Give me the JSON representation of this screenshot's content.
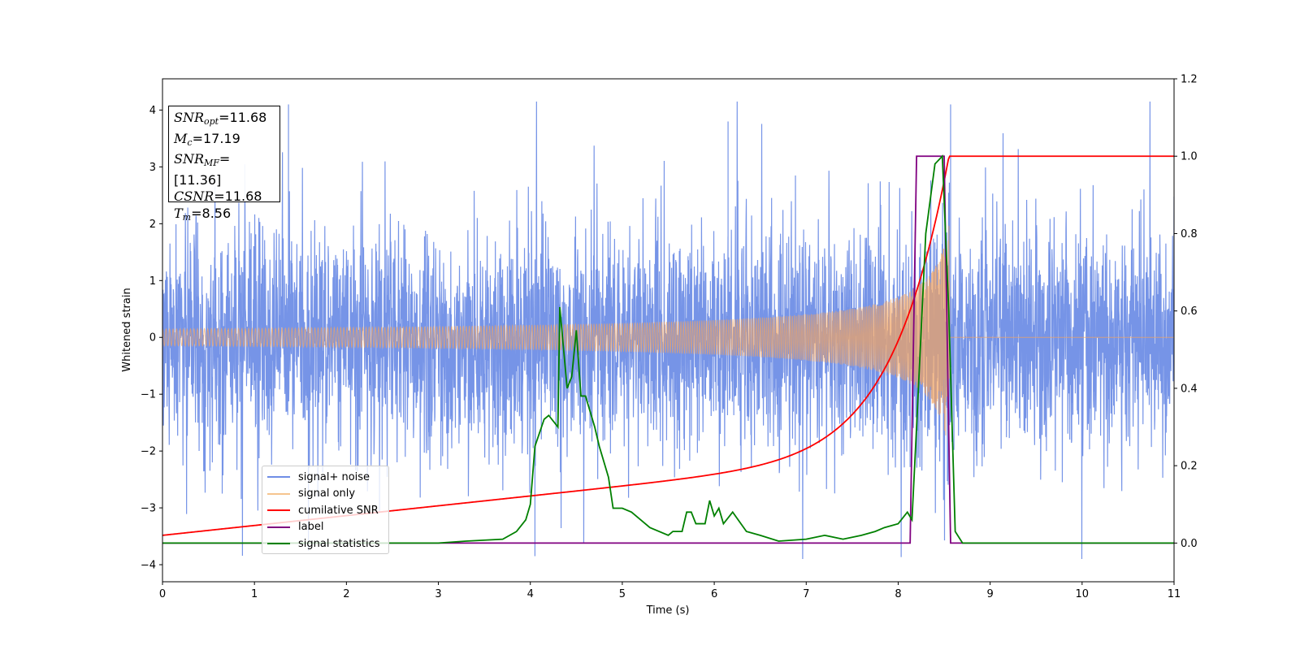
{
  "chart_data": {
    "type": "line",
    "xlabel": "Time (s)",
    "ylabel": "Whitened strain",
    "xlim": [
      0,
      11
    ],
    "ylim": [
      -4.3,
      4.55
    ],
    "y2lim": [
      -0.1,
      1.2
    ],
    "xticks": [
      "0",
      "1",
      "2",
      "3",
      "4",
      "5",
      "6",
      "7",
      "8",
      "9",
      "10",
      "11"
    ],
    "yticks": [
      "−4",
      "−3",
      "−2",
      "−1",
      "0",
      "1",
      "2",
      "3",
      "4"
    ],
    "y2ticks": [
      "0.0",
      "0.2",
      "0.4",
      "0.6",
      "0.8",
      "1.0",
      "1.2"
    ],
    "annotations": {
      "snr_opt": "11.68",
      "mc": "17.19",
      "snr_mf": "[11.36]",
      "csnr": "11.68",
      "tm": "8.56"
    },
    "series": [
      {
        "name": "signal+ noise",
        "axis": "left",
        "color": "#4169e1",
        "description_envelope": {
          "typical_amplitude": 1.6,
          "peak_spikes": [
            {
              "x": 1.37,
              "y": 4.1
            },
            {
              "x": 8.57,
              "y": 4.1
            },
            {
              "x": 4.05,
              "y": -3.85
            },
            {
              "x": 6.15,
              "y": 3.8
            }
          ]
        }
      },
      {
        "name": "signal only",
        "axis": "left",
        "color": "#f4a460",
        "chirp": {
          "t_merger": 8.56,
          "amplitude_at_merger": 2.1
        }
      },
      {
        "name": "cumilative SNR",
        "axis": "right",
        "color": "#ff0000",
        "points": [
          [
            0,
            0.01
          ],
          [
            1,
            0.04
          ],
          [
            2,
            0.06
          ],
          [
            3,
            0.085
          ],
          [
            4,
            0.11
          ],
          [
            5,
            0.135
          ],
          [
            6,
            0.165
          ],
          [
            7,
            0.21
          ],
          [
            7.5,
            0.25
          ],
          [
            8,
            0.32
          ],
          [
            8.2,
            0.39
          ],
          [
            8.4,
            0.55
          ],
          [
            8.5,
            0.72
          ],
          [
            8.56,
            1.0
          ],
          [
            11,
            1.0
          ]
        ]
      },
      {
        "name": "label",
        "axis": "right",
        "color": "#800080",
        "points": [
          [
            0,
            0.0
          ],
          [
            8.13,
            0.0
          ],
          [
            8.2,
            1.0
          ],
          [
            8.5,
            1.0
          ],
          [
            8.57,
            0.0
          ],
          [
            11,
            0.0
          ]
        ]
      },
      {
        "name": "signal statistics",
        "axis": "right",
        "color": "#008000",
        "points": [
          [
            0,
            0.0
          ],
          [
            3.0,
            0.0
          ],
          [
            3.3,
            0.005
          ],
          [
            3.7,
            0.01
          ],
          [
            3.85,
            0.03
          ],
          [
            3.95,
            0.06
          ],
          [
            4.0,
            0.1
          ],
          [
            4.05,
            0.25
          ],
          [
            4.15,
            0.32
          ],
          [
            4.2,
            0.33
          ],
          [
            4.3,
            0.3
          ],
          [
            4.32,
            0.61
          ],
          [
            4.4,
            0.4
          ],
          [
            4.45,
            0.43
          ],
          [
            4.5,
            0.55
          ],
          [
            4.55,
            0.38
          ],
          [
            4.6,
            0.38
          ],
          [
            4.7,
            0.3
          ],
          [
            4.75,
            0.25
          ],
          [
            4.85,
            0.17
          ],
          [
            4.9,
            0.09
          ],
          [
            5.0,
            0.09
          ],
          [
            5.1,
            0.08
          ],
          [
            5.2,
            0.06
          ],
          [
            5.3,
            0.04
          ],
          [
            5.5,
            0.02
          ],
          [
            5.55,
            0.03
          ],
          [
            5.65,
            0.03
          ],
          [
            5.7,
            0.08
          ],
          [
            5.75,
            0.08
          ],
          [
            5.8,
            0.05
          ],
          [
            5.9,
            0.05
          ],
          [
            5.95,
            0.11
          ],
          [
            6.0,
            0.07
          ],
          [
            6.05,
            0.09
          ],
          [
            6.1,
            0.05
          ],
          [
            6.2,
            0.08
          ],
          [
            6.35,
            0.03
          ],
          [
            6.5,
            0.02
          ],
          [
            6.7,
            0.005
          ],
          [
            7.0,
            0.01
          ],
          [
            7.2,
            0.02
          ],
          [
            7.4,
            0.01
          ],
          [
            7.6,
            0.02
          ],
          [
            7.75,
            0.03
          ],
          [
            7.85,
            0.04
          ],
          [
            8.0,
            0.05
          ],
          [
            8.1,
            0.08
          ],
          [
            8.15,
            0.06
          ],
          [
            8.2,
            0.3
          ],
          [
            8.3,
            0.8
          ],
          [
            8.4,
            0.98
          ],
          [
            8.48,
            1.0
          ],
          [
            8.55,
            0.6
          ],
          [
            8.62,
            0.03
          ],
          [
            8.7,
            0.0
          ],
          [
            11,
            0.0
          ]
        ]
      }
    ]
  }
}
